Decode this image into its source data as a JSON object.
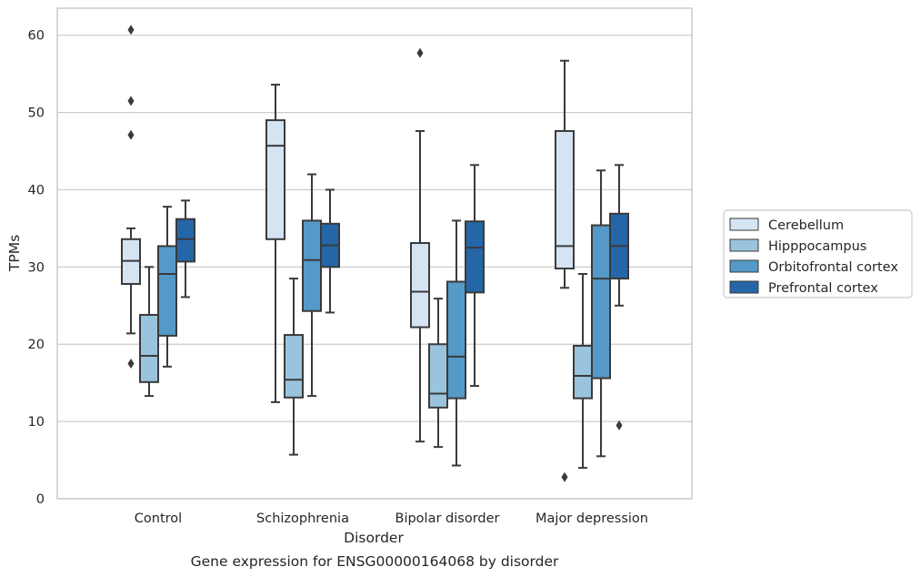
{
  "chart_data": {
    "type": "box",
    "title": "",
    "caption": "Gene expression for ENSG00000164068 by disorder",
    "xlabel": "Disorder",
    "ylabel": "TPMs",
    "ylim": [
      0,
      63.5
    ],
    "yticks": [
      0,
      10,
      20,
      30,
      40,
      50,
      60
    ],
    "grid": true,
    "legend_position": "right",
    "categories": [
      "Control",
      "Schizophrenia",
      "Bipolar disorder",
      "Major depression"
    ],
    "series": [
      {
        "name": "Cerebellum",
        "color": "#d4e4f2",
        "boxes": [
          {
            "whisker_low": 21.4,
            "q1": 27.8,
            "median": 30.8,
            "q3": 33.6,
            "whisker_high": 35.0,
            "outliers": [
              17.5,
              47.1,
              51.5,
              60.7
            ]
          },
          {
            "whisker_low": 12.5,
            "q1": 33.6,
            "median": 45.7,
            "q3": 49.0,
            "whisker_high": 53.6,
            "outliers": []
          },
          {
            "whisker_low": 7.4,
            "q1": 22.2,
            "median": 26.8,
            "q3": 33.1,
            "whisker_high": 47.6,
            "outliers": [
              57.7
            ]
          },
          {
            "whisker_low": 27.3,
            "q1": 29.8,
            "median": 32.7,
            "q3": 47.6,
            "whisker_high": 56.7,
            "outliers": [
              2.8
            ]
          }
        ]
      },
      {
        "name": "Hipppocampus",
        "color": "#9ac4de",
        "boxes": [
          {
            "whisker_low": 13.3,
            "q1": 15.1,
            "median": 18.5,
            "q3": 23.8,
            "whisker_high": 30.0,
            "outliers": []
          },
          {
            "whisker_low": 5.7,
            "q1": 13.1,
            "median": 15.4,
            "q3": 21.2,
            "whisker_high": 28.5,
            "outliers": []
          },
          {
            "whisker_low": 6.7,
            "q1": 11.8,
            "median": 13.6,
            "q3": 20.0,
            "whisker_high": 25.9,
            "outliers": []
          },
          {
            "whisker_low": 4.0,
            "q1": 13.0,
            "median": 15.9,
            "q3": 19.8,
            "whisker_high": 29.1,
            "outliers": []
          }
        ]
      },
      {
        "name": "Orbitofrontal cortex",
        "color": "#5499c7",
        "boxes": [
          {
            "whisker_low": 17.1,
            "q1": 21.1,
            "median": 29.1,
            "q3": 32.7,
            "whisker_high": 37.8,
            "outliers": []
          },
          {
            "whisker_low": 13.3,
            "q1": 24.3,
            "median": 30.9,
            "q3": 36.0,
            "whisker_high": 42.0,
            "outliers": []
          },
          {
            "whisker_low": 4.3,
            "q1": 13.0,
            "median": 18.4,
            "q3": 28.1,
            "whisker_high": 36.0,
            "outliers": []
          },
          {
            "whisker_low": 5.5,
            "q1": 15.6,
            "median": 28.5,
            "q3": 35.4,
            "whisker_high": 42.5,
            "outliers": []
          }
        ]
      },
      {
        "name": "Prefrontal cortex",
        "color": "#2566a8",
        "boxes": [
          {
            "whisker_low": 26.1,
            "q1": 30.7,
            "median": 33.6,
            "q3": 36.2,
            "whisker_high": 38.6,
            "outliers": []
          },
          {
            "whisker_low": 24.1,
            "q1": 30.0,
            "median": 32.8,
            "q3": 35.6,
            "whisker_high": 40.0,
            "outliers": []
          },
          {
            "whisker_low": 14.6,
            "q1": 26.7,
            "median": 32.5,
            "q3": 35.9,
            "whisker_high": 43.2,
            "outliers": []
          },
          {
            "whisker_low": 25.0,
            "q1": 28.5,
            "median": 32.7,
            "q3": 36.9,
            "whisker_high": 43.2,
            "outliers": [
              9.5
            ]
          }
        ]
      }
    ]
  }
}
